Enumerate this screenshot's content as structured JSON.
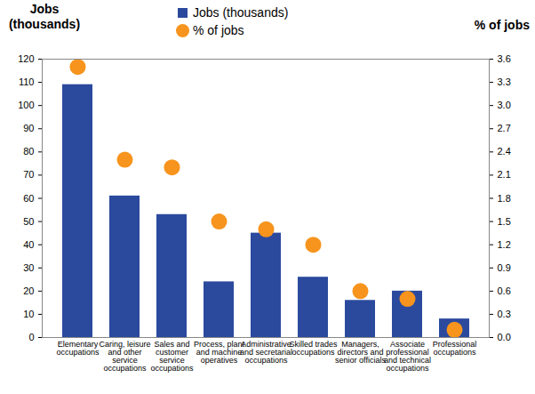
{
  "chart_data": {
    "type": "bar",
    "categories": [
      "Elementary occupations",
      "Caring, leisure and other service occupations",
      "Sales and customer service occupations",
      "Process, plant and machine operatives",
      "Administrative and secretarial occupations",
      "Skilled trades occupations",
      "Managers, directors and senior officials",
      "Associate professional and technical occupations",
      "Professional occupations"
    ],
    "series": [
      {
        "name": "Jobs (thousands)",
        "type": "bar",
        "color": "#2B4A9E",
        "values": [
          109,
          61,
          53,
          24,
          45,
          26,
          16,
          20,
          8
        ]
      },
      {
        "name": "% of jobs",
        "type": "scatter",
        "marker": "circle",
        "color": "#F7941D",
        "axis": "y2",
        "values": [
          3.5,
          2.3,
          2.2,
          1.5,
          1.4,
          1.2,
          0.6,
          0.5,
          0.1
        ]
      }
    ],
    "y_label": "Jobs (thousands)",
    "y2_label": "% of jobs",
    "ylim": [
      0,
      120
    ],
    "yticks": [
      0,
      10,
      20,
      30,
      40,
      50,
      60,
      70,
      80,
      90,
      100,
      110,
      120
    ],
    "y2lim": [
      0,
      3.6
    ],
    "y2ticks": [
      {
        "value": 0,
        "label": "0.0"
      },
      0.3,
      0.6,
      0.9,
      1.2,
      1.5,
      1.8,
      2.1,
      2.4,
      2.7,
      {
        "value": 3,
        "label": "3.0"
      },
      3.3,
      3.6
    ],
    "grid": false,
    "legend": "top"
  }
}
